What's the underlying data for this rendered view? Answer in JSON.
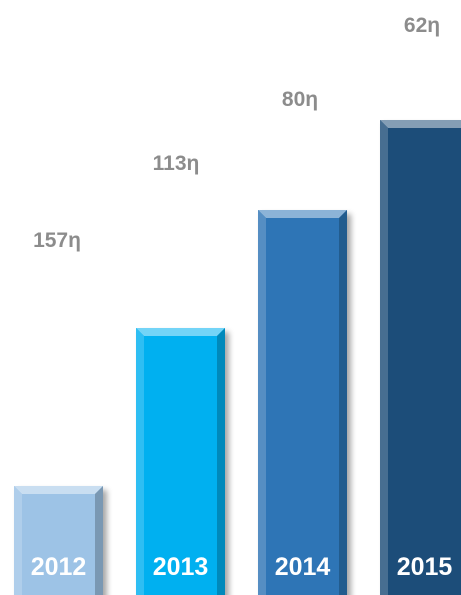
{
  "chart_data": {
    "type": "bar",
    "categories": [
      "2012",
      "2013",
      "2014",
      "2015"
    ],
    "values": [
      157,
      113,
      80,
      62
    ],
    "value_labels": [
      "157η",
      "113η",
      "80η",
      "62η"
    ],
    "bar_colors": [
      "#9dc3e6",
      "#00b0f0",
      "#2e75b6",
      "#1f4e79"
    ],
    "label_color": "#8c8c8c",
    "category_label_color": "#ffffff",
    "title": "",
    "xlabel": "",
    "ylabel": "",
    "grid": false,
    "legend": "none"
  }
}
